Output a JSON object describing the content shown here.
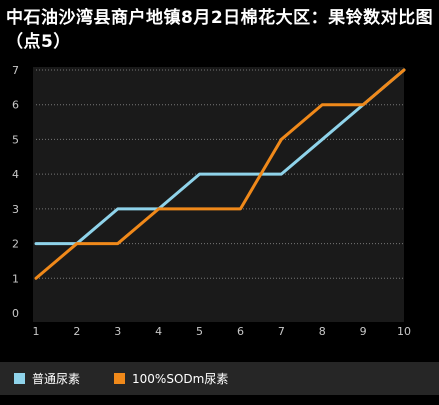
{
  "title": "中石油沙湾县商户地镇8月2日棉花大区：果铃数对比图（点5）",
  "chart_data": {
    "type": "line",
    "title": "中石油沙湾县商户地镇8月2日棉花大区：果铃数对比图（点5）",
    "x": [
      1,
      2,
      3,
      4,
      5,
      6,
      7,
      8,
      9,
      10
    ],
    "series": [
      {
        "name": "普通尿素",
        "color": "#8fd3ea",
        "values": [
          2,
          2,
          3,
          3,
          4,
          4,
          4,
          5,
          6,
          7
        ]
      },
      {
        "name": "100%SODm尿素",
        "color": "#f0891a",
        "values": [
          1,
          2,
          2,
          3,
          3,
          3,
          5,
          6,
          6,
          7
        ]
      }
    ],
    "xlim": [
      1,
      10
    ],
    "ylim": [
      0,
      7
    ],
    "yticks": [
      0,
      1,
      2,
      3,
      4,
      5,
      6,
      7
    ],
    "xticks": [
      1,
      2,
      3,
      4,
      5,
      6,
      7,
      8,
      9,
      10
    ],
    "grid": true,
    "legend": "bottom"
  },
  "colors": {
    "background": "#000000",
    "plot_background": "#1a1a1a",
    "grid": "#777777",
    "axis_text": "#c8c8c8",
    "legend_bar": "#262626"
  }
}
